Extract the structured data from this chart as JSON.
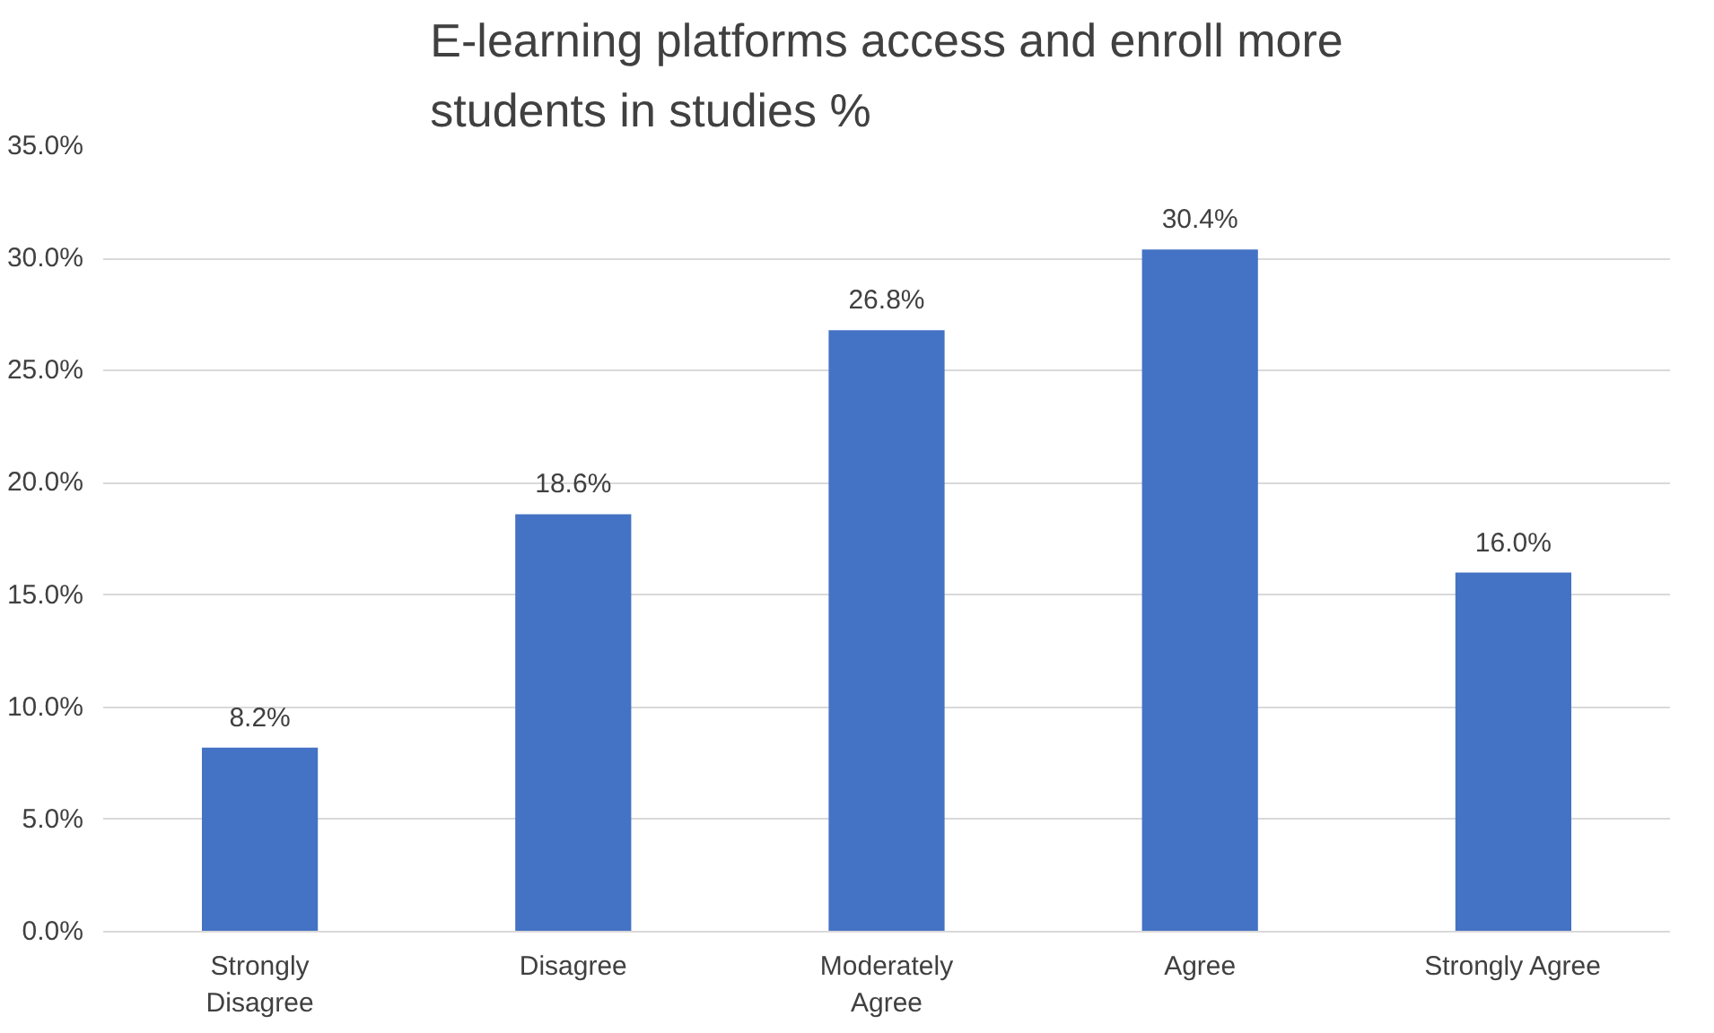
{
  "chart_data": {
    "type": "bar",
    "title": "E-learning platforms access and enroll more students in studies %",
    "categories": [
      "Strongly\nDisagree",
      "Disagree",
      "Moderately\nAgree",
      "Agree",
      "Strongly Agree"
    ],
    "values": [
      8.2,
      18.6,
      26.8,
      30.4,
      16.0
    ],
    "value_labels": [
      "8.2%",
      "18.6%",
      "26.8%",
      "30.4%",
      "16.0%"
    ],
    "color": "#4472c4",
    "ylim": [
      0,
      35
    ],
    "yticks": [
      {
        "value": 0,
        "label": "0.0%"
      },
      {
        "value": 5,
        "label": "5.0%"
      },
      {
        "value": 10,
        "label": "10.0%"
      },
      {
        "value": 15,
        "label": "15.0%"
      },
      {
        "value": 20,
        "label": "20.0%"
      },
      {
        "value": 25,
        "label": "25.0%"
      },
      {
        "value": 30,
        "label": "30.0%"
      },
      {
        "value": 35,
        "label": "35.0%"
      }
    ],
    "grid": "y"
  }
}
